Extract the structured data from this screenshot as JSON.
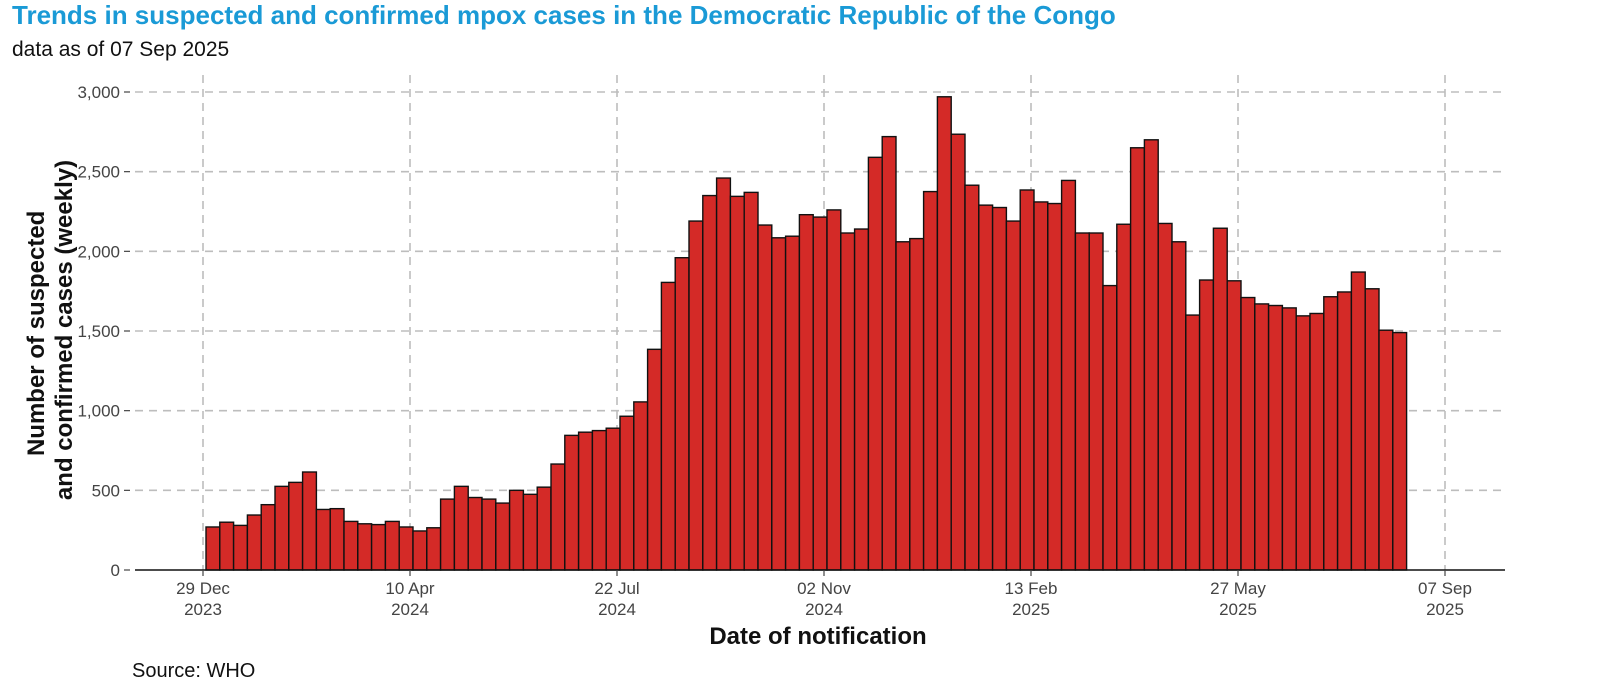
{
  "title": "Trends in suspected and confirmed mpox cases in the Democratic Republic of the Congo",
  "subtitle": "data as of 07 Sep 2025",
  "source": "Source: WHO",
  "colors": {
    "bar_fill": "#d42a27",
    "bar_stroke": "#111111",
    "title": "#1a9ad6",
    "grid": "#bdbdbd"
  },
  "chart_data": {
    "type": "bar",
    "xlabel": "Date of notification",
    "ylabel_lines": [
      "Number of suspected",
      "and confirmed cases (weekly)"
    ],
    "ylim": [
      0,
      3000
    ],
    "y_ticks": [
      {
        "value": 0,
        "label": "0"
      },
      {
        "value": 500,
        "label": "500"
      },
      {
        "value": 1000,
        "label": "1,000"
      },
      {
        "value": 1500,
        "label": "1,500"
      },
      {
        "value": 2000,
        "label": "2,000"
      },
      {
        "value": 2500,
        "label": "2,500"
      },
      {
        "value": 3000,
        "label": "3,000"
      }
    ],
    "x_ticks": [
      {
        "week": 0,
        "line1": "29 Dec",
        "line2": "2023"
      },
      {
        "week": 15,
        "line1": "10 Apr",
        "line2": "2024"
      },
      {
        "week": 30,
        "line1": "22 Jul",
        "line2": "2024"
      },
      {
        "week": 45,
        "line1": "02 Nov",
        "line2": "2024"
      },
      {
        "week": 60,
        "line1": "13 Feb",
        "line2": "2025"
      },
      {
        "week": 75,
        "line1": "27 May",
        "line2": "2025"
      },
      {
        "week": 90,
        "line1": "07 Sep",
        "line2": "2025"
      }
    ],
    "grid": true,
    "values": [
      270,
      300,
      280,
      345,
      410,
      525,
      550,
      615,
      380,
      385,
      305,
      290,
      285,
      305,
      270,
      245,
      265,
      445,
      525,
      455,
      445,
      420,
      500,
      475,
      520,
      665,
      845,
      865,
      875,
      890,
      965,
      1055,
      1385,
      1805,
      1960,
      2190,
      2350,
      2460,
      2345,
      2370,
      2165,
      2085,
      2095,
      2230,
      2215,
      2260,
      2115,
      2140,
      2590,
      2720,
      2060,
      2080,
      2375,
      2970,
      2735,
      2415,
      2290,
      2275,
      2190,
      2385,
      2310,
      2300,
      2445,
      2115,
      2115,
      1785,
      2170,
      2650,
      2700,
      2175,
      2060,
      1600,
      1820,
      2145,
      1815,
      1710,
      1670,
      1660,
      1645,
      1595,
      1610,
      1715,
      1745,
      1870,
      1765,
      1505,
      1490
    ]
  }
}
